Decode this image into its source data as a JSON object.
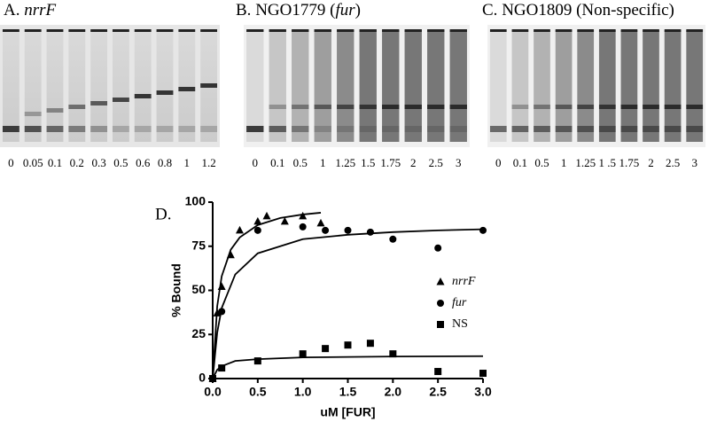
{
  "panels": [
    {
      "label": "A.",
      "title": [
        "nrrF"
      ],
      "italic": [
        0
      ],
      "lanes": [
        "0",
        "0.05",
        "0.1",
        "0.2",
        "0.3",
        "0.5",
        "0.6",
        "0.8",
        "1",
        "1.2"
      ]
    },
    {
      "label": "B.",
      "title": [
        "NGO1779 (",
        "fur",
        ")"
      ],
      "italic": [
        1
      ],
      "lanes": [
        "0",
        "0.1",
        "0.5",
        "1",
        "1.25",
        "1.5",
        "1.75",
        "2",
        "2.5",
        "3"
      ]
    },
    {
      "label": "C.",
      "title": [
        "NGO1809 (Non-specific)"
      ],
      "italic": [],
      "lanes": [
        "0",
        "0.1",
        "0.5",
        "1",
        "1.25",
        "1 .5",
        "1.75",
        "2",
        "2.5",
        "3"
      ]
    }
  ],
  "chart_data": {
    "type": "scatter",
    "panel_label": "D.",
    "xlabel": "uM [FUR]",
    "ylabel": "% Bound",
    "xlim": [
      0,
      3
    ],
    "ylim": [
      0,
      100
    ],
    "xticks": [
      {
        "value": 0,
        "label": "0.0"
      },
      {
        "value": 0.5,
        "label": "0.5"
      },
      {
        "value": 1,
        "label": "1.0"
      },
      {
        "value": 1.5,
        "label": "1.5"
      },
      {
        "value": 2,
        "label": "2.0"
      },
      {
        "value": 2.5,
        "label": "2.5"
      },
      {
        "value": 3,
        "label": "3.0"
      }
    ],
    "yticks": [
      0,
      25,
      50,
      75,
      100
    ],
    "series": [
      {
        "name": "nrrF",
        "italic_name": true,
        "marker": "triangle",
        "color": "#000000",
        "x": [
          0,
          0.05,
          0.1,
          0.2,
          0.3,
          0.5,
          0.6,
          0.8,
          1,
          1.2
        ],
        "values": [
          0,
          37,
          52,
          70,
          84,
          89,
          92,
          89,
          92,
          88
        ],
        "fit_x": [
          0,
          0.05,
          0.1,
          0.2,
          0.3,
          0.5,
          0.75,
          1,
          1.2
        ],
        "fit_values": [
          0,
          41,
          58,
          73,
          80,
          87,
          91,
          93,
          94
        ]
      },
      {
        "name": "fur",
        "italic_name": true,
        "marker": "circle",
        "color": "#000000",
        "x": [
          0,
          0.1,
          0.5,
          1,
          1.25,
          1.5,
          1.75,
          2,
          2.5,
          3
        ],
        "values": [
          0,
          38,
          84,
          86,
          84,
          84,
          83,
          79,
          74,
          84
        ],
        "fit_x": [
          0,
          0.05,
          0.1,
          0.25,
          0.5,
          1,
          1.5,
          2,
          2.5,
          3
        ],
        "fit_values": [
          0,
          26,
          40,
          59,
          71,
          79,
          81.5,
          83,
          84,
          84.6
        ]
      },
      {
        "name": "NS",
        "italic_name": false,
        "marker": "square",
        "color": "#000000",
        "x": [
          0,
          0.1,
          0.5,
          1,
          1.25,
          1.5,
          1.75,
          2,
          2.5,
          3
        ],
        "values": [
          0,
          6,
          10,
          14,
          17,
          19,
          20,
          14,
          4,
          3
        ],
        "fit_x": [
          0,
          0.05,
          0.1,
          0.25,
          0.5,
          1,
          2,
          3
        ],
        "fit_values": [
          0,
          5,
          7,
          10,
          11,
          12,
          12.5,
          12.7
        ]
      }
    ]
  }
}
